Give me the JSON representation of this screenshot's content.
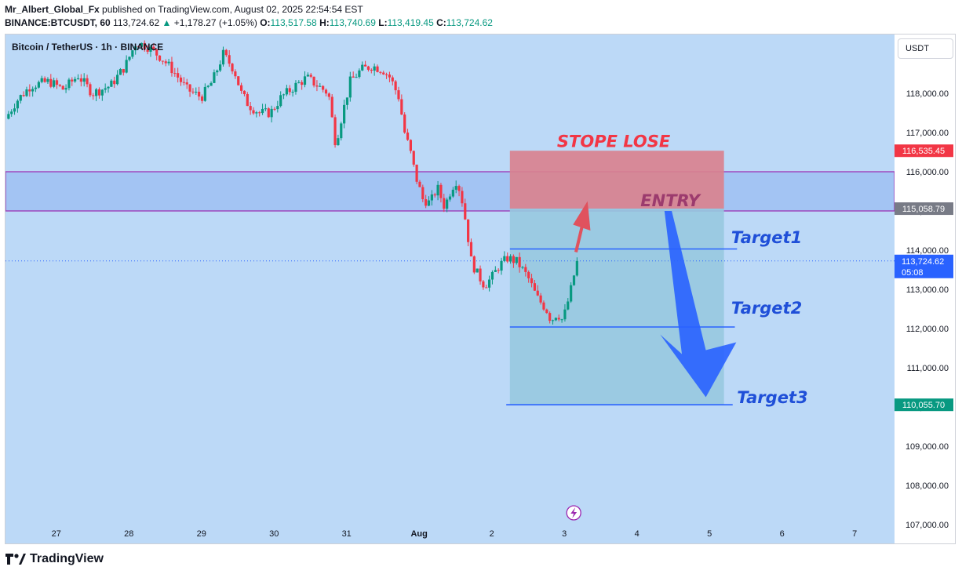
{
  "header": {
    "author": "Mr_Albert_Global_Fx",
    "published_text": "published on TradingView.com, August 02, 2025 22:54:54 EST",
    "symbol_line": "BINANCE:BTCUSDT, 60",
    "last": "113,724.62",
    "change": "+1,178.27 (+1.05%)",
    "o_label": "O:",
    "o": "113,517.58",
    "h_label": "H:",
    "h": "113,740.69",
    "l_label": "L:",
    "l": "113,419.45",
    "c_label": "C:",
    "c": "113,724.62"
  },
  "legend": "Bitcoin / TetherUS · 1h · BINANCE",
  "currency_button": "USDT",
  "logo_text": "TradingView",
  "colors": {
    "bull": "#089981",
    "bear": "#f23645",
    "plot_bg": "#bcd9f7",
    "zone_fill": "#a3c4f3",
    "zone_border": "#9c27b0",
    "stop_fill": "#d9828f",
    "target_fill": "#97c8df",
    "arrow_blue": "#2962ff",
    "arrow_red": "#e0525e",
    "line_blue": "#2962ff"
  },
  "chart_data": {
    "type": "candlestick",
    "title": "Bitcoin / TetherUS · 1h · BINANCE",
    "ylim": [
      106900,
      119500
    ],
    "y_ticks": [
      107000,
      108000,
      109000,
      110000,
      111000,
      112000,
      113000,
      114000,
      115000,
      116000,
      117000,
      118000
    ],
    "y_tick_labels": [
      "107,000.00",
      "108,000.00",
      "109,000.00",
      "110,000.00",
      "111,000.00",
      "112,000.00",
      "113,000.00",
      "114,000.00",
      "115,000.00",
      "116,000.00",
      "117,000.00",
      "118,000.00"
    ],
    "x_ticks": [
      "27",
      "28",
      "29",
      "30",
      "31",
      "Aug",
      "2",
      "3",
      "4",
      "5",
      "6",
      "7"
    ],
    "x_tick_days": [
      0,
      1,
      2,
      3,
      4,
      5,
      6,
      7,
      8,
      9,
      10,
      11
    ],
    "x_range_days": [
      -0.7,
      11.55
    ],
    "price_path": [
      [
        -0.7,
        117350
      ],
      [
        -0.55,
        117800
      ],
      [
        -0.35,
        118200
      ],
      [
        -0.1,
        118300
      ],
      [
        0.1,
        118100
      ],
      [
        0.3,
        118450
      ],
      [
        0.5,
        118000
      ],
      [
        0.75,
        118200
      ],
      [
        0.95,
        118700
      ],
      [
        1.1,
        119300
      ],
      [
        1.25,
        119200
      ],
      [
        1.45,
        118900
      ],
      [
        1.6,
        118600
      ],
      [
        1.8,
        118100
      ],
      [
        2.0,
        117900
      ],
      [
        2.15,
        118300
      ],
      [
        2.3,
        119000
      ],
      [
        2.45,
        118600
      ],
      [
        2.55,
        118000
      ],
      [
        2.65,
        117700
      ],
      [
        2.8,
        117500
      ],
      [
        2.95,
        117500
      ],
      [
        3.1,
        117900
      ],
      [
        3.3,
        118200
      ],
      [
        3.45,
        118400
      ],
      [
        3.6,
        118200
      ],
      [
        3.75,
        118000
      ],
      [
        3.85,
        116700
      ],
      [
        3.92,
        117300
      ],
      [
        4.05,
        118300
      ],
      [
        4.2,
        118600
      ],
      [
        4.35,
        118700
      ],
      [
        4.5,
        118600
      ],
      [
        4.6,
        118400
      ],
      [
        4.72,
        117900
      ],
      [
        4.8,
        117000
      ],
      [
        4.88,
        116500
      ],
      [
        4.95,
        115900
      ],
      [
        5.05,
        115300
      ],
      [
        5.15,
        115200
      ],
      [
        5.25,
        115600
      ],
      [
        5.35,
        115100
      ],
      [
        5.45,
        115600
      ],
      [
        5.52,
        115800
      ],
      [
        5.6,
        115200
      ],
      [
        5.66,
        114500
      ],
      [
        5.72,
        113700
      ],
      [
        5.8,
        113400
      ],
      [
        5.9,
        113100
      ],
      [
        6.0,
        113300
      ],
      [
        6.1,
        113600
      ],
      [
        6.22,
        113800
      ],
      [
        6.35,
        113700
      ],
      [
        6.5,
        113300
      ],
      [
        6.62,
        112800
      ],
      [
        6.75,
        112500
      ],
      [
        6.82,
        112200
      ],
      [
        6.9,
        112400
      ],
      [
        6.98,
        112200
      ],
      [
        7.08,
        112900
      ],
      [
        7.15,
        113500
      ],
      [
        7.2,
        113724.62
      ]
    ],
    "horizontal_zone": {
      "low": 115000,
      "high": 116000
    },
    "levels": {
      "stop_lose": 116535.45,
      "entry": 115058.79,
      "target1": 114030,
      "target2": 112040,
      "target3": 110055.7,
      "last_price": 113724.62
    },
    "price_labels": [
      {
        "value": 116535.45,
        "text": "116,535.45",
        "color": "#f23645"
      },
      {
        "value": 115058.79,
        "text": "115,058.79",
        "color": "#787b86"
      },
      {
        "value": 110055.7,
        "text": "110,055.70",
        "color": "#089981"
      }
    ],
    "last_price_label": {
      "text": "113,724.62",
      "countdown": "05:08",
      "color": "#2962ff"
    },
    "position_box": {
      "x_start_day": 6.25,
      "x_end_day": 9.2
    },
    "annotations": [
      {
        "text": "STOPE LOSE",
        "color": "#f23645"
      },
      {
        "text": "ENTRY",
        "color": "#9c3b6e"
      },
      {
        "text": "Target1",
        "color": "#1f4fd8"
      },
      {
        "text": "Target2",
        "color": "#1f4fd8"
      },
      {
        "text": "Target3",
        "color": "#1f4fd8"
      }
    ]
  }
}
